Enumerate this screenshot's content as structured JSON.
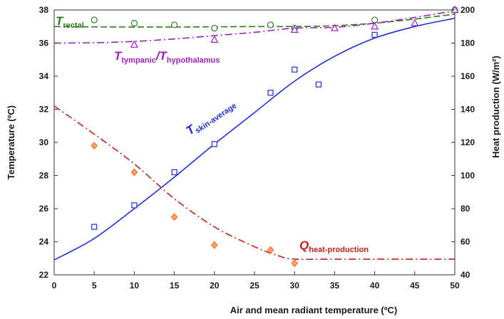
{
  "chart_data": {
    "type": "scatter",
    "xlabel": "Air and mean radiant temperature  (ºC)",
    "ylabel": "Temperature  (ºC)",
    "y2label": "Heat  production  (W/m²)",
    "xlim": [
      0,
      50
    ],
    "ylim": [
      22,
      38
    ],
    "y2lim": [
      40,
      200
    ],
    "xticks": [
      "0",
      "5",
      "10",
      "15",
      "20",
      "25",
      "30",
      "35",
      "40",
      "45",
      "50"
    ],
    "yticks": [
      "22",
      "24",
      "26",
      "28",
      "30",
      "32",
      "34",
      "36",
      "38"
    ],
    "y2ticks": [
      "40",
      "60",
      "80",
      "100",
      "120",
      "140",
      "160",
      "180",
      "200"
    ],
    "grid": false,
    "series": [
      {
        "key": "rectal",
        "color": "#2e7d1f",
        "axis": "left",
        "marker": "circle",
        "line_style": "dashed",
        "points": [
          [
            5,
            37.4
          ],
          [
            10,
            37.2
          ],
          [
            15,
            37.1
          ],
          [
            20,
            36.9
          ],
          [
            27,
            37.1
          ],
          [
            30,
            36.9
          ],
          [
            40,
            37.4
          ],
          [
            50,
            38.0
          ]
        ],
        "curve": [
          [
            0,
            37.0
          ],
          [
            5,
            36.98
          ],
          [
            10,
            36.97
          ],
          [
            15,
            36.97
          ],
          [
            20,
            36.98
          ],
          [
            25,
            37.0
          ],
          [
            30,
            37.0
          ],
          [
            35,
            37.05
          ],
          [
            40,
            37.2
          ],
          [
            45,
            37.45
          ],
          [
            50,
            37.75
          ]
        ]
      },
      {
        "key": "tympanic",
        "color": "#9a1fbf",
        "axis": "left",
        "marker": "triangle",
        "line_style": "dashdot",
        "points": [
          [
            10,
            35.9
          ],
          [
            20,
            36.2
          ],
          [
            30,
            36.8
          ],
          [
            35,
            36.9
          ],
          [
            40,
            37.0
          ],
          [
            45,
            37.2
          ],
          [
            50,
            38.0
          ]
        ],
        "curve": [
          [
            0,
            36.0
          ],
          [
            5,
            36.02
          ],
          [
            10,
            36.1
          ],
          [
            15,
            36.25
          ],
          [
            20,
            36.45
          ],
          [
            25,
            36.65
          ],
          [
            30,
            36.9
          ],
          [
            35,
            36.95
          ],
          [
            40,
            37.2
          ],
          [
            45,
            37.55
          ],
          [
            50,
            37.95
          ]
        ]
      },
      {
        "key": "skin",
        "color": "#1f2fd6",
        "axis": "left",
        "marker": "square",
        "line_style": "solid",
        "points": [
          [
            5,
            24.9
          ],
          [
            10,
            26.2
          ],
          [
            15,
            28.2
          ],
          [
            20,
            29.9
          ],
          [
            27,
            33.0
          ],
          [
            30,
            34.4
          ],
          [
            33,
            33.5
          ],
          [
            40,
            36.5
          ]
        ],
        "curve": [
          [
            0,
            22.9
          ],
          [
            5,
            24.2
          ],
          [
            10,
            26.0
          ],
          [
            15,
            27.9
          ],
          [
            20,
            29.9
          ],
          [
            25,
            31.8
          ],
          [
            30,
            33.7
          ],
          [
            35,
            35.2
          ],
          [
            40,
            36.3
          ],
          [
            45,
            37.0
          ],
          [
            50,
            37.5
          ]
        ]
      },
      {
        "key": "heat",
        "color": "#c0221a",
        "marker_color": "#ff6a1a",
        "axis": "right",
        "marker": "diamond",
        "line_style": "dashdot",
        "points": [
          [
            5,
            118
          ],
          [
            10,
            102
          ],
          [
            15,
            75
          ],
          [
            20,
            58
          ],
          [
            27,
            55
          ],
          [
            30,
            47
          ]
        ],
        "curve": [
          [
            0,
            142
          ],
          [
            5,
            125
          ],
          [
            10,
            107
          ],
          [
            15,
            86
          ],
          [
            20,
            69
          ],
          [
            25,
            57
          ],
          [
            28,
            51.5
          ],
          [
            30,
            49.5
          ],
          [
            35,
            49.5
          ],
          [
            40,
            49.5
          ],
          [
            45,
            49.5
          ],
          [
            50,
            49.5
          ]
        ]
      }
    ],
    "annotations": [
      {
        "key": "rectal",
        "main": "T",
        "sub": "rectal",
        "color": "#2e7d1f"
      },
      {
        "key": "tympanic",
        "main": "T",
        "sub": "tympanic",
        "sep": "/",
        "main2": "T",
        "sub2": "hypothalamus",
        "color": "#9a1fbf"
      },
      {
        "key": "skin",
        "main": "T",
        "sub": "skin-average",
        "color": "#1f2fd6"
      },
      {
        "key": "heat",
        "main": "Q",
        "sub": "heat-production",
        "color": "#c0221a"
      }
    ]
  }
}
